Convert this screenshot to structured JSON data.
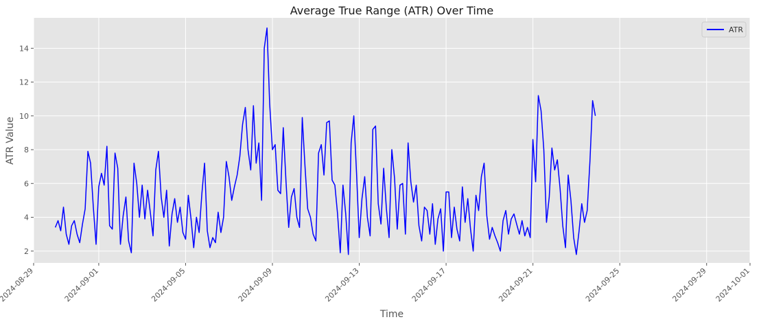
{
  "chart_data": {
    "type": "line",
    "title": "Average True Range (ATR) Over Time",
    "xlabel": "Time",
    "ylabel": "ATR Value",
    "grid": true,
    "legend_position": "top-right",
    "xlim": [
      "2024-08-29",
      "2024-10-01"
    ],
    "ylim": [
      1.3,
      15.8
    ],
    "x_ticks": [
      "2024-08-29",
      "2024-09-01",
      "2024-09-05",
      "2024-09-09",
      "2024-09-13",
      "2024-09-17",
      "2024-09-21",
      "2024-09-25",
      "2024-09-29",
      "2024-10-01"
    ],
    "y_ticks": [
      2,
      4,
      6,
      8,
      10,
      12,
      14
    ],
    "colors": {
      "background": "#e5e5e5",
      "grid": "#ffffff",
      "line": "#0000ff"
    },
    "series": [
      {
        "name": "ATR",
        "x_start": "2024-08-30 00:00",
        "interval": "3H",
        "values": [
          3.4,
          3.8,
          3.2,
          4.6,
          3.0,
          2.4,
          3.5,
          3.8,
          3.0,
          2.5,
          3.6,
          4.5,
          7.9,
          7.2,
          4.6,
          2.4,
          5.8,
          6.6,
          5.9,
          8.2,
          3.5,
          3.3,
          7.8,
          6.9,
          2.4,
          4.1,
          5.2,
          2.6,
          1.9,
          7.2,
          6.0,
          4.0,
          5.9,
          3.9,
          5.6,
          4.3,
          2.9,
          6.8,
          7.9,
          5.2,
          4.0,
          5.6,
          2.3,
          4.2,
          5.1,
          3.7,
          4.6,
          3.1,
          2.7,
          5.3,
          3.9,
          2.2,
          4.0,
          3.1,
          5.4,
          7.2,
          3.2,
          2.2,
          2.8,
          2.5,
          4.3,
          3.1,
          4.0,
          7.3,
          6.4,
          5.0,
          5.8,
          6.5,
          7.6,
          9.5,
          10.5,
          8.0,
          6.8,
          10.6,
          7.2,
          8.4,
          5.0,
          14.0,
          15.2,
          10.7,
          8.0,
          8.3,
          5.6,
          5.4,
          9.3,
          6.1,
          3.4,
          5.2,
          5.7,
          4.0,
          3.4,
          9.9,
          7.0,
          4.5,
          4.0,
          3.0,
          2.6,
          7.8,
          8.3,
          6.5,
          9.6,
          9.7,
          6.2,
          5.9,
          4.2,
          1.9,
          5.9,
          4.2,
          1.8,
          8.4,
          10.0,
          6.6,
          2.8,
          5.1,
          6.4,
          4.0,
          2.9,
          9.2,
          9.4,
          4.8,
          3.6,
          6.9,
          4.5,
          2.8,
          8.0,
          6.3,
          3.3,
          5.9,
          6.0,
          3.0,
          8.4,
          6.1,
          4.9,
          5.9,
          3.5,
          2.6,
          4.6,
          4.4,
          3.0,
          4.8,
          2.4,
          3.9,
          4.5,
          2.0,
          5.5,
          5.5,
          2.8,
          4.6,
          3.3,
          2.6,
          5.8,
          3.7,
          5.1,
          3.3,
          2.0,
          5.3,
          4.4,
          6.4,
          7.2,
          4.1,
          2.7,
          3.4,
          2.9,
          2.5,
          2.0,
          3.8,
          4.4,
          3.0,
          3.9,
          4.2,
          3.6,
          3.0,
          3.8,
          2.9,
          3.4,
          2.8,
          8.6,
          6.1,
          11.2,
          10.3,
          8.0,
          3.7,
          5.2,
          8.1,
          6.8,
          7.4,
          5.7,
          3.5,
          2.2,
          6.5,
          5.0,
          2.8,
          1.8,
          3.2,
          4.8,
          3.7,
          4.4,
          7.3,
          10.9,
          10.0
        ]
      }
    ]
  }
}
